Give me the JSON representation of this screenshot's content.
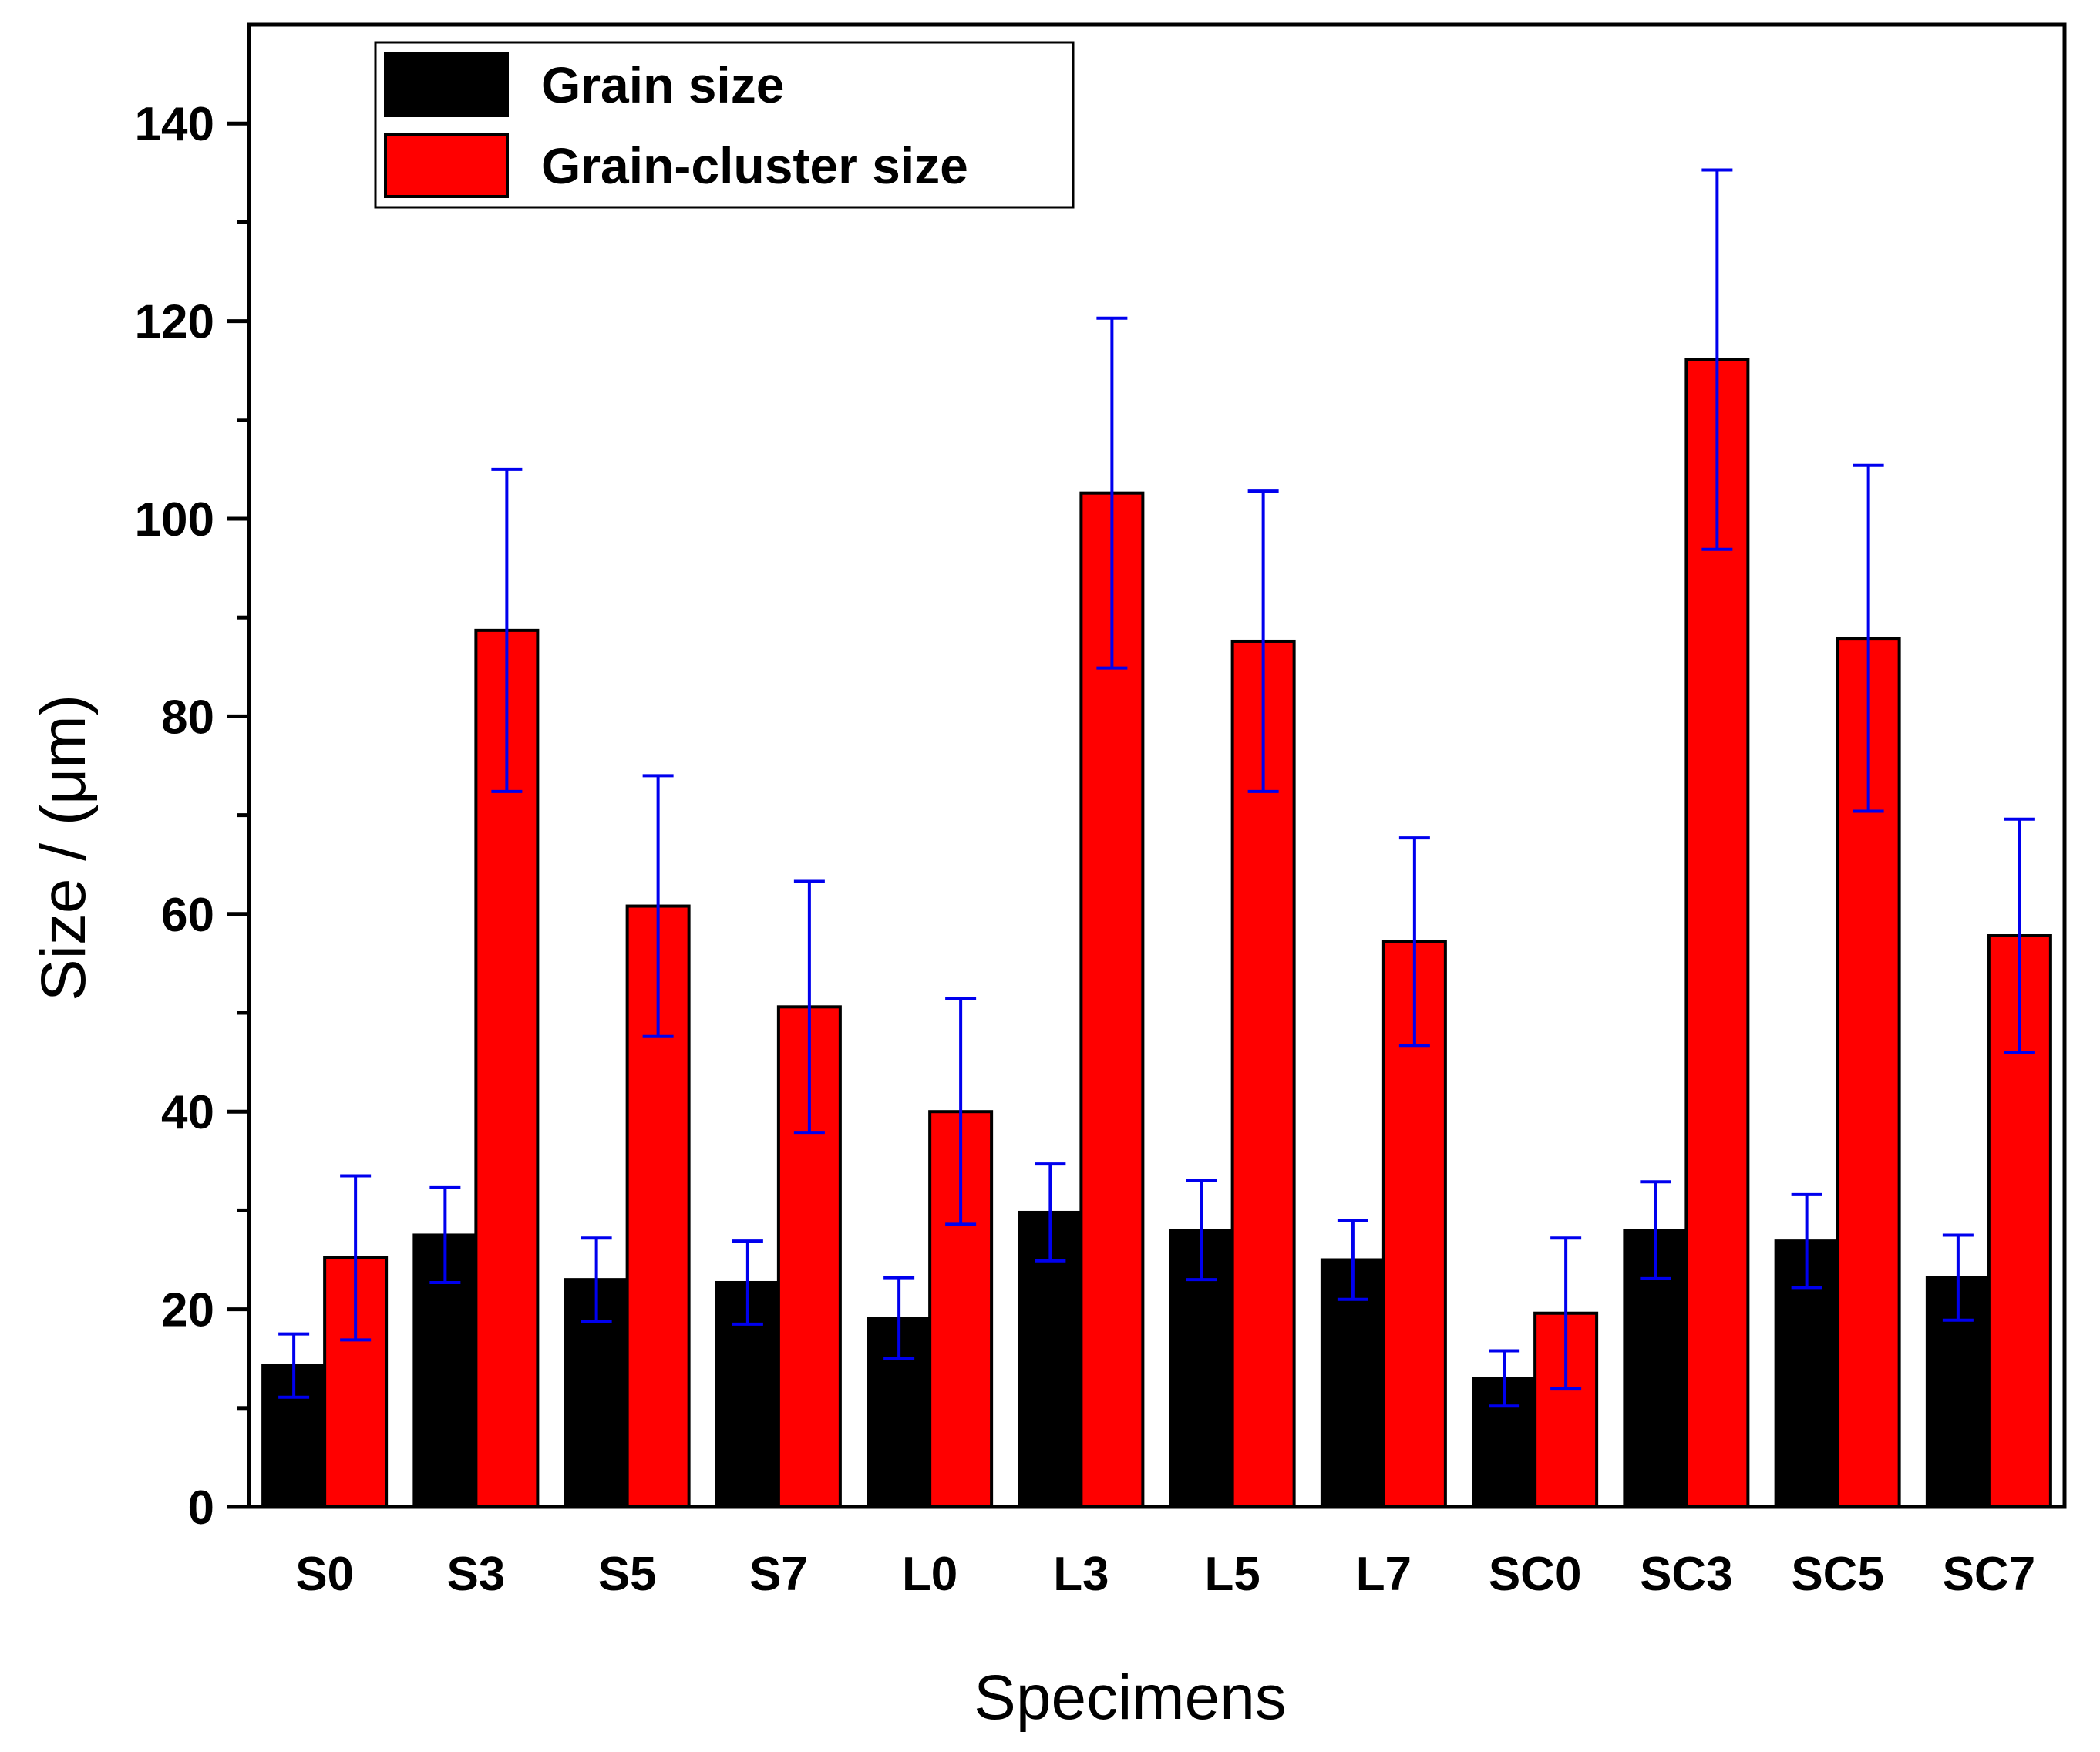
{
  "chart_data": {
    "type": "bar",
    "title": "",
    "xlabel": "Specimens",
    "ylabel": "Size / (μm)",
    "ylim": [
      0,
      150
    ],
    "yticks": [
      0,
      20,
      40,
      60,
      80,
      100,
      120,
      140
    ],
    "categories": [
      "S0",
      "S3",
      "S5",
      "S7",
      "L0",
      "L3",
      "L5",
      "L7",
      "SC0",
      "SC3",
      "SC5",
      "SC7"
    ],
    "series": [
      {
        "name": "Grain size",
        "color": "#000000",
        "values": [
          14.3,
          27.5,
          23.0,
          22.7,
          19.1,
          29.8,
          28.0,
          25.0,
          13.0,
          28.0,
          26.9,
          23.2
        ],
        "errors": [
          3.2,
          4.8,
          4.2,
          4.2,
          4.1,
          4.9,
          5.0,
          4.0,
          2.8,
          4.9,
          4.7,
          4.3
        ]
      },
      {
        "name": "Grain-cluster size",
        "color": "#ff0000",
        "values": [
          25.2,
          88.7,
          60.8,
          50.6,
          40.0,
          102.6,
          87.6,
          57.2,
          19.6,
          116.1,
          87.9,
          57.8
        ],
        "errors": [
          8.3,
          16.3,
          13.2,
          12.7,
          11.4,
          17.7,
          15.2,
          10.5,
          7.6,
          19.2,
          17.5,
          11.8
        ]
      }
    ],
    "error_bar_color": "#0000ee",
    "legend_position": "top-left"
  }
}
